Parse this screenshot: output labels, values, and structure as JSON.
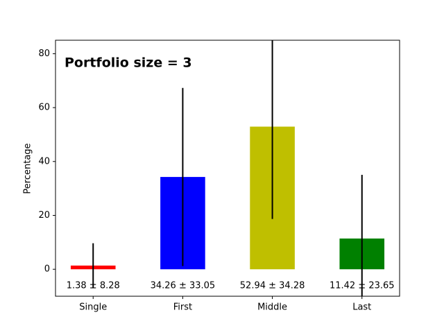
{
  "chart_data": {
    "type": "bar",
    "annotation": "Portfolio size = 3",
    "ylabel": "Percentage",
    "categories": [
      "Single",
      "First",
      "Middle",
      "Last"
    ],
    "values": [
      1.38,
      34.26,
      52.94,
      11.42
    ],
    "errors": [
      8.28,
      33.05,
      34.28,
      23.65
    ],
    "value_labels": [
      "1.38 ± 8.28",
      "34.26 ± 33.05",
      "52.94 ± 34.28",
      "11.42 ± 23.65"
    ],
    "colors": [
      "#ff0000",
      "#0000ff",
      "#bfbf00",
      "#008000"
    ],
    "ylim": [
      -10,
      85
    ],
    "yticks": [
      0,
      20,
      40,
      60,
      80
    ]
  }
}
